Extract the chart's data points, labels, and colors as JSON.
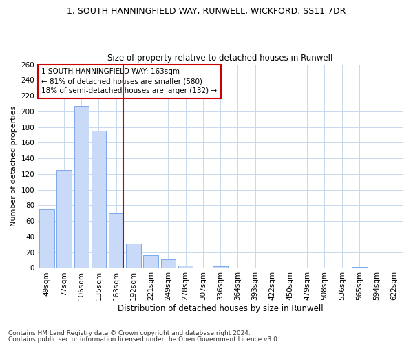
{
  "title": "1, SOUTH HANNINGFIELD WAY, RUNWELL, WICKFORD, SS11 7DR",
  "subtitle": "Size of property relative to detached houses in Runwell",
  "xlabel": "Distribution of detached houses by size in Runwell",
  "ylabel": "Number of detached properties",
  "categories": [
    "49sqm",
    "77sqm",
    "106sqm",
    "135sqm",
    "163sqm",
    "192sqm",
    "221sqm",
    "249sqm",
    "278sqm",
    "307sqm",
    "336sqm",
    "364sqm",
    "393sqm",
    "422sqm",
    "450sqm",
    "479sqm",
    "508sqm",
    "536sqm",
    "565sqm",
    "594sqm",
    "622sqm"
  ],
  "values": [
    75,
    125,
    207,
    175,
    70,
    31,
    16,
    11,
    3,
    0,
    2,
    0,
    0,
    0,
    0,
    0,
    0,
    0,
    1,
    0,
    0
  ],
  "bar_color": "#c9daf8",
  "bar_edge_color": "#6d9eeb",
  "highlight_line_index": 4,
  "highlight_line_color": "#cc0000",
  "annotation_text": "1 SOUTH HANNINGFIELD WAY: 163sqm\n← 81% of detached houses are smaller (580)\n18% of semi-detached houses are larger (132) →",
  "annotation_box_color": "#ffffff",
  "annotation_box_edge_color": "#cc0000",
  "ylim": [
    0,
    260
  ],
  "yticks": [
    0,
    20,
    40,
    60,
    80,
    100,
    120,
    140,
    160,
    180,
    200,
    220,
    240,
    260
  ],
  "footer1": "Contains HM Land Registry data © Crown copyright and database right 2024.",
  "footer2": "Contains public sector information licensed under the Open Government Licence v3.0.",
  "background_color": "#ffffff",
  "grid_color": "#c8d8ee",
  "title_fontsize": 9,
  "subtitle_fontsize": 8.5,
  "ylabel_fontsize": 8,
  "xlabel_fontsize": 8.5,
  "tick_fontsize": 7.5,
  "annotation_fontsize": 7.5,
  "footer_fontsize": 6.5
}
